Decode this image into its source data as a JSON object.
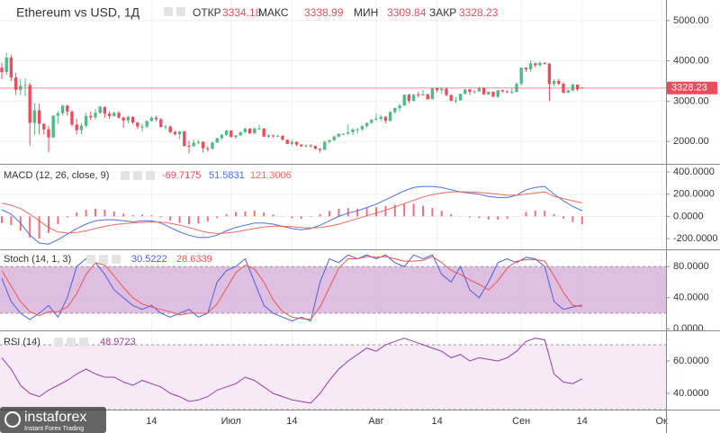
{
  "chart_data": [
    {
      "type": "candlestick",
      "title": "Ethereum vs USD, 1Д",
      "open_label": "ОТКР",
      "high_label": "МАКС",
      "low_label": "МИН",
      "close_label": "ЗАКР",
      "categories": [
        null,
        null,
        null,
        null,
        null,
        null,
        null,
        null,
        null,
        null,
        null,
        null,
        null,
        null,
        null,
        null,
        null,
        null,
        null,
        null,
        null,
        null,
        null,
        null,
        null,
        null,
        null,
        null,
        null,
        null,
        null,
        null,
        "14",
        null,
        null,
        null,
        null,
        null,
        null,
        null,
        null,
        null,
        null,
        null,
        null,
        null,
        null,
        null,
        null,
        "Июл",
        null,
        null,
        null,
        null,
        null,
        null,
        null,
        null,
        null,
        null,
        null,
        null,
        "14",
        null,
        null,
        null,
        null,
        null,
        null,
        null,
        null,
        null,
        null,
        null,
        null,
        null,
        null,
        null,
        null,
        null,
        "Авг",
        null,
        null,
        null,
        null,
        null,
        null,
        null,
        null,
        null,
        null,
        null,
        null,
        "14",
        null,
        null,
        null,
        null,
        null,
        null,
        null,
        null,
        null,
        null,
        null,
        null,
        null,
        null,
        null,
        null,
        null,
        "Сен",
        null,
        null,
        null,
        null,
        null,
        null,
        null,
        null,
        null,
        null,
        null,
        null,
        "14",
        null,
        null,
        null,
        null,
        null,
        null,
        null,
        null,
        null,
        null,
        null,
        null,
        null,
        null,
        null,
        null,
        "Ок"
      ],
      "open": [
        3830,
        3720,
        4080,
        3590,
        3280,
        3380,
        3400,
        2460,
        2770,
        2440,
        2300,
        2100,
        2640,
        2700,
        2890,
        2740,
        2420,
        2280,
        2390,
        2630,
        2600,
        2710,
        2860,
        2690,
        2630,
        2710,
        2590,
        2520,
        2610,
        2470,
        2370,
        2370,
        2510,
        2590,
        2550,
        2360,
        2370,
        2230,
        2180,
        2250,
        1890,
        1880,
        1970,
        1990,
        1830,
        1820,
        1970,
        2080,
        2160,
        2270,
        2110,
        2150,
        2230,
        2320,
        2200,
        2320,
        2320,
        2120,
        2150,
        2140,
        2140,
        2040,
        1940,
        1990,
        1920,
        1880,
        1900,
        1890,
        1820,
        1790,
        1990,
        2030,
        2120,
        2190,
        2190,
        2230,
        2300,
        2300,
        2380,
        2460,
        2540,
        2560,
        2610,
        2510,
        2730,
        2830,
        2890,
        3160,
        3010,
        3160,
        3140,
        3170,
        3050,
        3320,
        3270,
        3310,
        3150,
        3010,
        3020,
        3180,
        3290,
        3230,
        3240,
        3320,
        3170,
        3230,
        3110,
        3270,
        3240,
        3230,
        3230,
        3430,
        3830,
        3790,
        3940,
        3890,
        3950,
        3930,
        3430,
        3500,
        3430,
        3210,
        3260,
        3410,
        3334.18,
        null,
        null,
        null,
        null,
        null,
        null,
        null,
        null,
        null,
        null,
        null,
        null,
        null,
        null,
        null,
        null,
        null
      ],
      "high": [
        3950,
        4200,
        4150,
        3700,
        3550,
        3570,
        3450,
        2950,
        2940,
        2450,
        2380,
        2650,
        2750,
        2910,
        2910,
        2770,
        2560,
        2450,
        2710,
        2740,
        2800,
        2890,
        2860,
        2750,
        2740,
        2750,
        2620,
        2640,
        2620,
        2490,
        2440,
        2520,
        2620,
        2640,
        2580,
        2420,
        2400,
        2270,
        2260,
        2260,
        2020,
        2050,
        2040,
        2010,
        1880,
        2000,
        2090,
        2190,
        2300,
        2280,
        2160,
        2240,
        2340,
        2330,
        2350,
        2410,
        2330,
        2190,
        2170,
        2170,
        2150,
        2050,
        2040,
        2000,
        1930,
        1930,
        1930,
        1900,
        1830,
        2020,
        2050,
        2140,
        2200,
        2200,
        2430,
        2320,
        2340,
        2400,
        2470,
        2550,
        2700,
        2660,
        2630,
        2750,
        2840,
        2940,
        3170,
        3180,
        3180,
        3230,
        3280,
        3190,
        3330,
        3330,
        3330,
        3330,
        3170,
        3110,
        3190,
        3300,
        3300,
        3270,
        3360,
        3350,
        3250,
        3250,
        3280,
        3290,
        3270,
        3320,
        3470,
        3840,
        3840,
        4020,
        3960,
        3980,
        3970,
        3950,
        3540,
        3560,
        3470,
        3300,
        3440,
        3420,
        3338.99,
        null,
        null,
        null,
        null,
        null,
        null,
        null,
        null,
        null,
        null,
        null,
        null,
        null,
        null,
        null,
        null,
        null
      ],
      "low": [
        3550,
        3650,
        3500,
        3150,
        3150,
        3120,
        1900,
        2160,
        2180,
        2170,
        1730,
        2080,
        2440,
        2640,
        2640,
        2370,
        2180,
        2180,
        2340,
        2530,
        2550,
        2680,
        2590,
        2560,
        2610,
        2570,
        2330,
        2450,
        2420,
        2310,
        2240,
        2330,
        2490,
        2490,
        2340,
        2290,
        2200,
        2150,
        2050,
        1870,
        1700,
        1860,
        1930,
        1730,
        1750,
        1800,
        1970,
        2050,
        2140,
        2090,
        2060,
        2140,
        2210,
        2180,
        2190,
        2300,
        2110,
        2090,
        2090,
        2100,
        2030,
        1930,
        1900,
        1880,
        1860,
        1860,
        1850,
        1800,
        1720,
        1790,
        1950,
        2010,
        2100,
        2160,
        2170,
        2160,
        2200,
        2260,
        2340,
        2440,
        2520,
        2510,
        2450,
        2500,
        2690,
        2750,
        2880,
        2950,
        2990,
        3090,
        3140,
        3030,
        3050,
        3220,
        3180,
        3120,
        2990,
        2950,
        3010,
        3170,
        3150,
        3190,
        3240,
        3160,
        3150,
        3100,
        3080,
        3220,
        3200,
        3180,
        3210,
        3390,
        3730,
        3730,
        3830,
        3860,
        3910,
        3000,
        3370,
        3400,
        3190,
        3200,
        3250,
        3250,
        3309.84,
        null,
        null,
        null,
        null,
        null,
        null,
        null,
        null,
        null,
        null,
        null,
        null,
        null,
        null,
        null,
        null,
        null
      ],
      "close": [
        3720,
        4080,
        3590,
        3280,
        3380,
        3400,
        2460,
        2770,
        2440,
        2300,
        2100,
        2640,
        2700,
        2890,
        2740,
        2420,
        2280,
        2390,
        2630,
        2600,
        2710,
        2860,
        2690,
        2630,
        2710,
        2590,
        2520,
        2610,
        2470,
        2370,
        2370,
        2510,
        2590,
        2550,
        2360,
        2370,
        2230,
        2180,
        2250,
        1890,
        1880,
        1970,
        1990,
        1830,
        1820,
        1970,
        2080,
        2160,
        2270,
        2110,
        2150,
        2230,
        2320,
        2200,
        2320,
        2320,
        2120,
        2150,
        2140,
        2140,
        2040,
        1940,
        1990,
        1920,
        1880,
        1900,
        1890,
        1820,
        1790,
        1990,
        2030,
        2120,
        2190,
        2190,
        2230,
        2300,
        2300,
        2380,
        2460,
        2540,
        2560,
        2610,
        2510,
        2730,
        2830,
        2890,
        3160,
        3010,
        3160,
        3140,
        3170,
        3050,
        3320,
        3270,
        3310,
        3150,
        3010,
        3020,
        3180,
        3290,
        3230,
        3240,
        3320,
        3170,
        3230,
        3110,
        3270,
        3240,
        3230,
        3230,
        3430,
        3830,
        3790,
        3940,
        3890,
        3950,
        3930,
        3430,
        3500,
        3430,
        3210,
        3260,
        3410,
        3290,
        3328.23,
        null,
        null,
        null,
        null,
        null,
        null,
        null,
        null,
        null,
        null,
        null,
        null,
        null,
        null,
        null,
        null,
        null
      ],
      "up_color": "#53b987",
      "down_color": "#eb4d5c",
      "ylim": [
        1444,
        5467
      ],
      "yticks": [
        {
          "value": 2000,
          "label": "2000.00"
        },
        {
          "value": 3000,
          "label": "3000.00"
        },
        {
          "value": 4000,
          "label": "4000.00"
        },
        {
          "value": 5000,
          "label": "5000.00"
        }
      ],
      "grid": true,
      "last_price_line": true
    },
    {
      "type": "macd",
      "title": "MACD (12, 26, close, 9)",
      "series": [
        {
          "kind": "histogram",
          "color": "#eb4d5c",
          "values": [
            -60,
            -80,
            -130,
            -190,
            -200,
            -150,
            -70,
            -10,
            35,
            60,
            70,
            60,
            45,
            25,
            10,
            15,
            10,
            -8,
            -38,
            -60,
            -70,
            -65,
            -45,
            -15,
            20,
            40,
            45,
            50,
            35,
            18,
            -2,
            -17,
            -20,
            -5,
            20,
            48,
            70,
            75,
            70,
            75,
            80,
            95,
            105,
            115,
            115,
            95,
            75,
            50,
            20,
            -2,
            -10,
            -15,
            -28,
            -30,
            -22,
            0,
            40,
            50,
            50,
            20,
            -20,
            -50,
            -69.7175
          ]
        },
        {
          "kind": "line",
          "color": "#4a6fe3",
          "values": [
            60,
            20,
            -60,
            -170,
            -240,
            -250,
            -210,
            -160,
            -110,
            -70,
            -40,
            -30,
            -30,
            -40,
            -50,
            -40,
            -40,
            -60,
            -100,
            -140,
            -170,
            -190,
            -190,
            -170,
            -130,
            -100,
            -80,
            -60,
            -60,
            -70,
            -90,
            -110,
            -120,
            -110,
            -80,
            -40,
            0,
            30,
            50,
            80,
            110,
            150,
            190,
            230,
            260,
            270,
            270,
            260,
            240,
            220,
            210,
            200,
            180,
            170,
            170,
            190,
            240,
            260,
            270,
            200,
            140,
            90,
            51.5831
          ]
        },
        {
          "kind": "line",
          "color": "#ef6a5f",
          "values": [
            120,
            100,
            70,
            20,
            -40,
            -100,
            -140,
            -150,
            -145,
            -130,
            -110,
            -90,
            -75,
            -65,
            -60,
            -55,
            -50,
            -52,
            -62,
            -80,
            -100,
            -125,
            -145,
            -155,
            -150,
            -140,
            -125,
            -110,
            -95,
            -88,
            -88,
            -93,
            -100,
            -105,
            -100,
            -88,
            -70,
            -45,
            -20,
            5,
            30,
            55,
            85,
            115,
            145,
            175,
            195,
            210,
            220,
            222,
            220,
            215,
            208,
            200,
            192,
            190,
            200,
            210,
            220,
            180,
            160,
            140,
            121.3006
          ]
        }
      ],
      "ylim": [
        -297,
        465
      ],
      "yticks": [
        {
          "value": 400,
          "label": "400.0000"
        },
        {
          "value": 200,
          "label": "200.0000"
        },
        {
          "value": 0,
          "label": "0.0000"
        },
        {
          "value": -200,
          "label": "-200.0000"
        }
      ],
      "grid": true
    },
    {
      "type": "stoch",
      "title": "Stoch (14, 1, 3)",
      "series": [
        {
          "kind": "line",
          "color": "#4a5fe0",
          "values": [
            65,
            35,
            20,
            12,
            20,
            30,
            15,
            40,
            80,
            90,
            85,
            70,
            50,
            40,
            30,
            25,
            30,
            20,
            15,
            20,
            25,
            15,
            20,
            60,
            75,
            80,
            90,
            60,
            30,
            20,
            15,
            10,
            15,
            10,
            60,
            90,
            85,
            95,
            90,
            95,
            90,
            95,
            85,
            80,
            95,
            90,
            95,
            70,
            60,
            80,
            50,
            40,
            60,
            85,
            90,
            85,
            92,
            90,
            80,
            35,
            25,
            28,
            30.5222
          ]
        },
        {
          "kind": "line",
          "color": "#ef5350",
          "values": [
            75,
            55,
            35,
            22,
            17,
            22,
            22,
            28,
            45,
            70,
            85,
            82,
            68,
            53,
            40,
            32,
            28,
            25,
            22,
            18,
            20,
            20,
            20,
            32,
            52,
            72,
            82,
            77,
            60,
            37,
            22,
            15,
            13,
            12,
            28,
            53,
            78,
            90,
            90,
            93,
            92,
            93,
            90,
            87,
            87,
            88,
            93,
            85,
            75,
            70,
            63,
            57,
            50,
            62,
            78,
            87,
            89,
            89,
            87,
            68,
            47,
            30,
            28.6339
          ]
        }
      ],
      "band": [
        20,
        80
      ],
      "band_color": "#d8b4dc",
      "ylim": [
        -2,
        101
      ],
      "yticks": [
        {
          "value": 80,
          "label": "80.0000"
        },
        {
          "value": 40,
          "label": "40.0000"
        },
        {
          "value": 0,
          "label": "0.0000"
        }
      ],
      "grid": true
    },
    {
      "type": "rsi",
      "title": "RSI (14)",
      "series": [
        {
          "kind": "line",
          "color": "#9c3aa6",
          "values": [
            62,
            55,
            45,
            40,
            38,
            42,
            45,
            48,
            52,
            55,
            52,
            50,
            50,
            47,
            45,
            48,
            46,
            44,
            40,
            38,
            35,
            36,
            38,
            42,
            44,
            46,
            50,
            48,
            44,
            40,
            38,
            36,
            35,
            34,
            40,
            48,
            55,
            60,
            64,
            68,
            66,
            70,
            72,
            74,
            72,
            70,
            68,
            66,
            62,
            64,
            60,
            62,
            61,
            60,
            62,
            66,
            72,
            74,
            73,
            52,
            47,
            46,
            48.9723
          ]
        }
      ],
      "band": [
        30,
        70
      ],
      "band_color": "#f3e6f4",
      "ylim": [
        30,
        78.3
      ],
      "yticks": [
        {
          "value": 60,
          "label": "60.0000"
        },
        {
          "value": 40,
          "label": "40.0000"
        }
      ],
      "grid": true
    }
  ],
  "watermark": {
    "name": "instaforex",
    "tagline": "Instant Forex Trading"
  }
}
